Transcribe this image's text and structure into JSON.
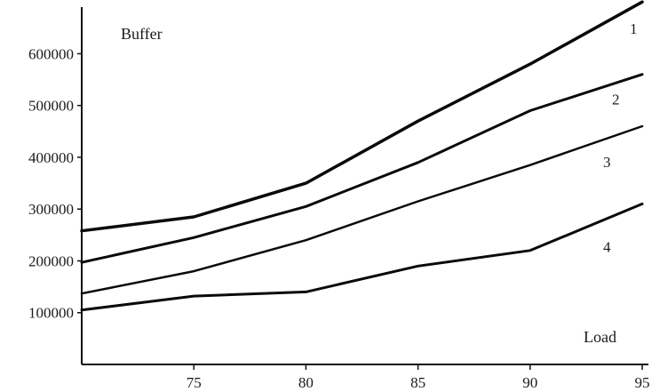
{
  "chart_data": {
    "type": "line",
    "title": "",
    "xlabel": "Load",
    "ylabel": "Buffer",
    "xlim": [
      70,
      95
    ],
    "ylim": [
      0,
      690000
    ],
    "x_ticks": [
      75,
      80,
      85,
      90,
      95
    ],
    "y_ticks": [
      100000,
      200000,
      300000,
      400000,
      500000,
      600000
    ],
    "x_tick_labels": [
      "75",
      "80",
      "85",
      "90",
      "95"
    ],
    "y_tick_labels": [
      "100000",
      "200000",
      "300000",
      "400000",
      "500000",
      "600000"
    ],
    "grid": false,
    "legend": "none",
    "series": [
      {
        "name": "1",
        "x": [
          70,
          75,
          80,
          85,
          90,
          95
        ],
        "y": [
          258000,
          285000,
          350000,
          470000,
          580000,
          700000
        ],
        "stroke_width": 3.5
      },
      {
        "name": "2",
        "x": [
          70,
          75,
          80,
          85,
          90,
          95
        ],
        "y": [
          197000,
          245000,
          305000,
          390000,
          490000,
          560000
        ],
        "stroke_width": 3
      },
      {
        "name": "3",
        "x": [
          70,
          75,
          80,
          85,
          90,
          95
        ],
        "y": [
          137000,
          180000,
          240000,
          315000,
          385000,
          460000
        ],
        "stroke_width": 2.5
      },
      {
        "name": "4",
        "x": [
          70,
          75,
          80,
          85,
          90,
          95
        ],
        "y": [
          105000,
          132000,
          140000,
          190000,
          220000,
          310000
        ],
        "stroke_width": 3
      }
    ]
  }
}
